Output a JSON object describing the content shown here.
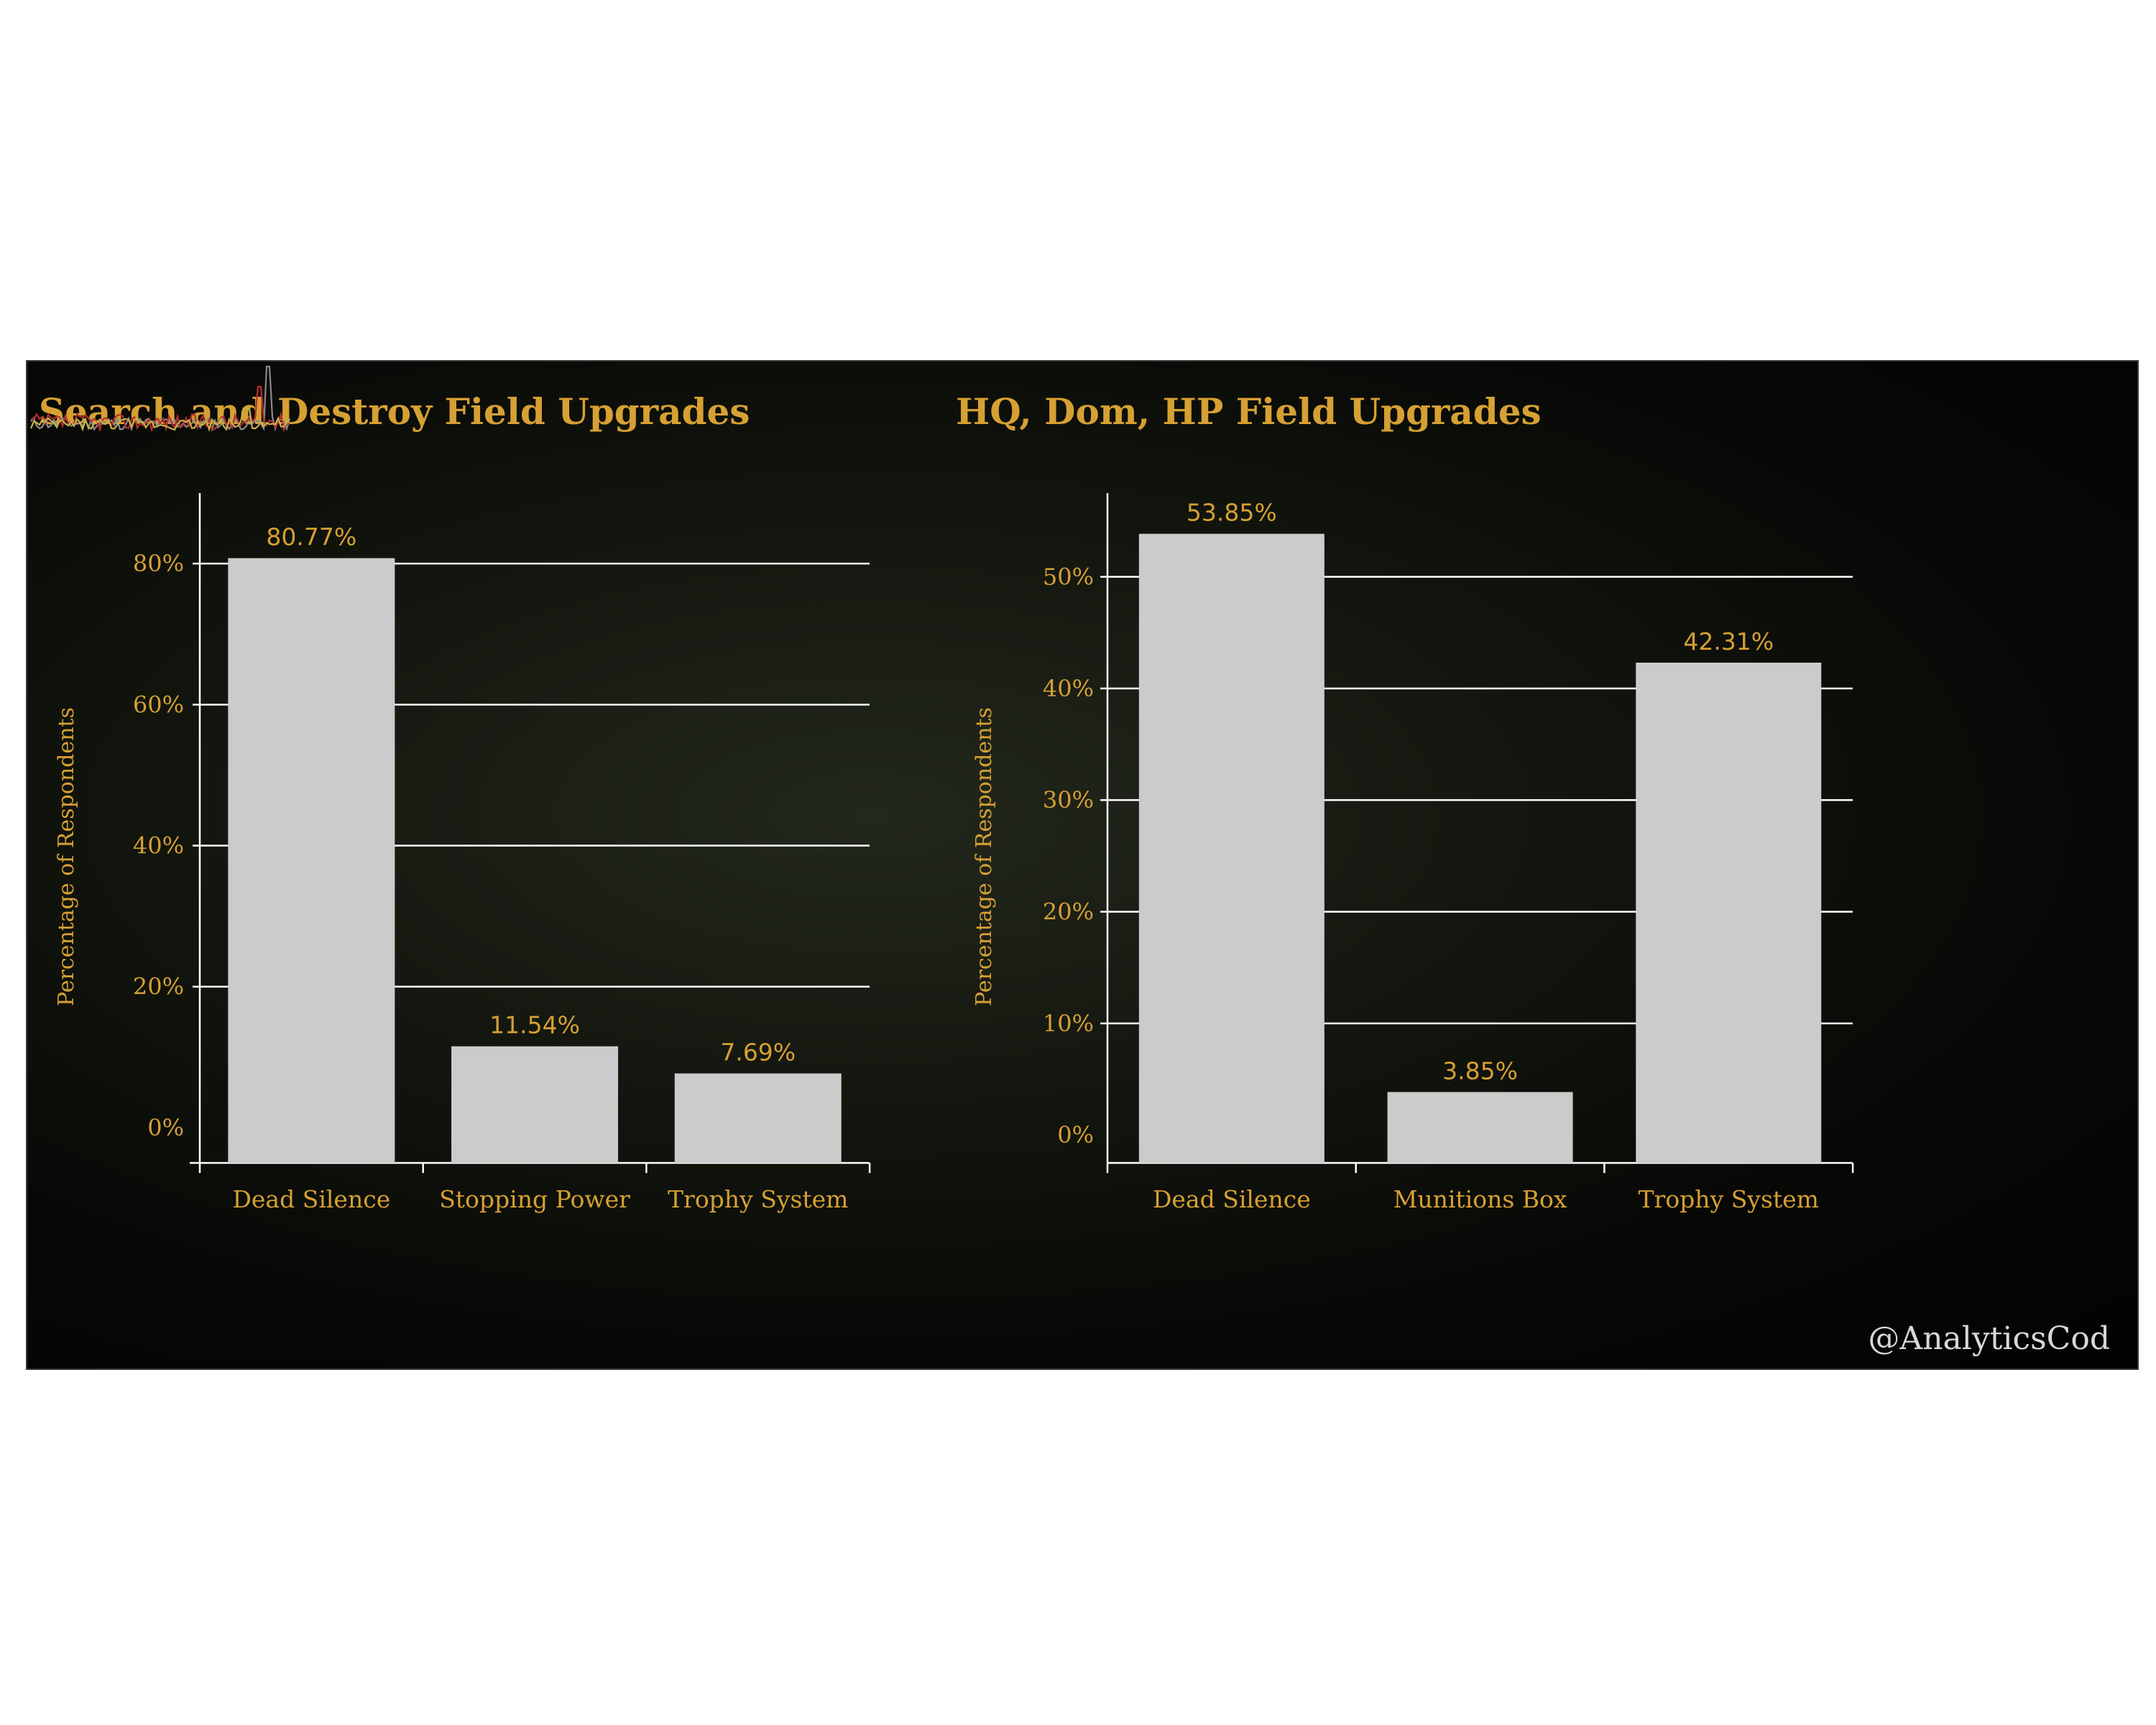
{
  "colors": {
    "accent": "#d6a033",
    "bar": "#cacbca",
    "grid": "#ffffff",
    "background": "#080908"
  },
  "chart_data": [
    {
      "type": "bar",
      "title": "Search and Destroy Field Upgrades",
      "ylabel": "Percentage of Respondents",
      "xlabel": "",
      "categories": [
        "Dead Silence",
        "Stopping Power",
        "Trophy System"
      ],
      "values": [
        80.77,
        11.54,
        7.69
      ],
      "data_labels": [
        "80.77%",
        "11.54%",
        "7.69%"
      ],
      "ylim": [
        -5,
        90
      ],
      "yticks": [
        0,
        20,
        40,
        60,
        80
      ],
      "ytick_labels": [
        "0%",
        "20%",
        "40%",
        "60%",
        "80%"
      ],
      "grid": true,
      "legend": "none"
    },
    {
      "type": "bar",
      "title": "HQ, Dom, HP Field Upgrades",
      "ylabel": "Percentage of Respondents",
      "xlabel": "",
      "categories": [
        "Dead Silence",
        "Munitions Box",
        "Trophy System"
      ],
      "values": [
        53.85,
        3.85,
        42.31
      ],
      "data_labels": [
        "53.85%",
        "3.85%",
        "42.31%"
      ],
      "ylim": [
        -2.5,
        57.5
      ],
      "yticks": [
        0,
        10,
        20,
        30,
        40,
        50
      ],
      "ytick_labels": [
        "0%",
        "10%",
        "20%",
        "30%",
        "40%",
        "50%"
      ],
      "grid": true,
      "legend": "none"
    }
  ],
  "watermark": {
    "handle": "@AnalyticsCod",
    "logo_icon": "waveform-logo-icon"
  }
}
